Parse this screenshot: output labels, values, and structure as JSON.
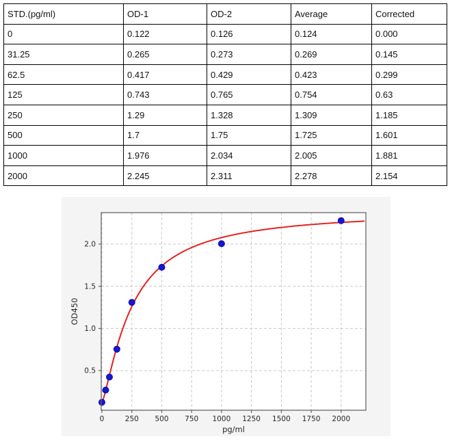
{
  "table": {
    "headers": [
      "STD.(pg/ml)",
      "OD-1",
      "OD-2",
      "Average",
      "Corrected"
    ],
    "rows": [
      [
        "0",
        "0.122",
        "0.126",
        "0.124",
        "0.000"
      ],
      [
        "31.25",
        "0.265",
        "0.273",
        "0.269",
        "0.145"
      ],
      [
        "62.5",
        "0.417",
        "0.429",
        "0.423",
        "0.299"
      ],
      [
        "125",
        "0.743",
        "0.765",
        "0.754",
        "0.63"
      ],
      [
        "250",
        "1.29",
        "1.328",
        "1.309",
        "1.185"
      ],
      [
        "500",
        "1.7",
        "1.75",
        "1.725",
        "1.601"
      ],
      [
        "1000",
        "1.976",
        "2.034",
        "2.005",
        "1.881"
      ],
      [
        "2000",
        "2.245",
        "2.311",
        "2.278",
        "2.154"
      ]
    ]
  },
  "chart_data": {
    "type": "scatter",
    "title": "",
    "xlabel": "pg/ml",
    "ylabel": "OD450",
    "x": [
      0,
      31.25,
      62.5,
      125,
      250,
      500,
      1000,
      2000
    ],
    "y": [
      0.124,
      0.269,
      0.423,
      0.754,
      1.309,
      1.725,
      2.005,
      2.278
    ],
    "x_ticks": [
      0,
      250,
      500,
      750,
      1000,
      1250,
      1500,
      1750,
      2000
    ],
    "y_ticks": [
      0.5,
      1.0,
      1.5,
      2.0
    ],
    "xlim": [
      -6,
      2207
    ],
    "ylim": [
      0.03,
      2.373
    ],
    "grid": true,
    "legend": "none",
    "marker_color": "#1717cf",
    "marker_edge_color": "#0d0da8",
    "curve_color": "#e32121",
    "fit_curve": {
      "type": "4PL",
      "a": 0.12,
      "b": 1.3,
      "c": 250,
      "d": 2.4
    },
    "background": "#f4f4f4",
    "plot_background": "#ffffff",
    "grid_color": "#c8c8c8",
    "spine_color": "#666666"
  }
}
